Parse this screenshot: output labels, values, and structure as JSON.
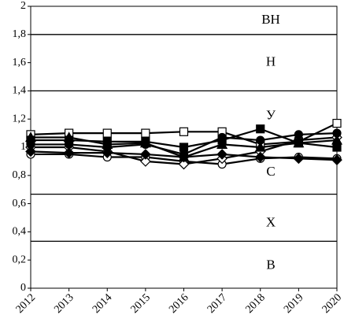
{
  "chart_data": {
    "type": "line",
    "categories": [
      "2012",
      "2013",
      "2014",
      "2015",
      "2016",
      "2017",
      "2018",
      "2019",
      "2020"
    ],
    "ylim": [
      0,
      2
    ],
    "yticks": [
      0,
      {
        "value": 0.2,
        "label": "0,2"
      },
      {
        "value": 0.4,
        "label": "0,4"
      },
      {
        "value": 0.6,
        "label": "0,6"
      },
      {
        "value": 0.8,
        "label": "0,8"
      },
      1,
      {
        "value": 1.2,
        "label": "1,2"
      },
      {
        "value": 1.4,
        "label": "1,4"
      },
      {
        "value": 1.6,
        "label": "1,6"
      },
      {
        "value": 1.8,
        "label": "1,8"
      },
      2
    ],
    "hlines": [
      1.8,
      1.4,
      0.667,
      0.333
    ],
    "zones": [
      {
        "label": "ВН",
        "y": 1.9
      },
      {
        "label": "Н",
        "y": 1.6
      },
      {
        "label": "У",
        "y": 1.22
      },
      {
        "label": "С",
        "y": 0.82
      },
      {
        "label": "Х",
        "y": 0.46
      },
      {
        "label": "В",
        "y": 0.16
      }
    ],
    "series": [
      {
        "color": "#000000",
        "marker": "square-open",
        "values": [
          1.09,
          1.1,
          1.1,
          1.1,
          1.11,
          1.11,
          1.02,
          1.04,
          1.17
        ]
      },
      {
        "color": "#000000",
        "marker": "circle-open",
        "values": [
          0.95,
          0.95,
          0.93,
          0.93,
          0.9,
          0.88,
          0.92,
          0.93,
          0.92
        ]
      },
      {
        "color": "#000000",
        "marker": "diamond-open",
        "values": [
          1.0,
          1.0,
          0.97,
          0.9,
          0.88,
          0.92,
          0.97,
          1.05,
          1.07
        ]
      },
      {
        "color": "#000000",
        "marker": "square",
        "values": [
          1.05,
          1.05,
          1.04,
          1.04,
          1.0,
          1.05,
          1.13,
          1.03,
          1.0
        ]
      },
      {
        "color": "#000000",
        "marker": "circle",
        "values": [
          1.02,
          1.02,
          1.0,
          1.02,
          0.95,
          1.07,
          1.05,
          1.09,
          1.1
        ]
      },
      {
        "color": "#000000",
        "marker": "diamond",
        "values": [
          0.97,
          0.96,
          0.96,
          0.95,
          0.93,
          0.95,
          0.93,
          0.92,
          0.91
        ]
      },
      {
        "color": "#000000",
        "marker": "triangle",
        "values": [
          1.07,
          1.07,
          1.02,
          1.03,
          0.93,
          1.02,
          1.0,
          1.03,
          1.05
        ]
      }
    ]
  }
}
